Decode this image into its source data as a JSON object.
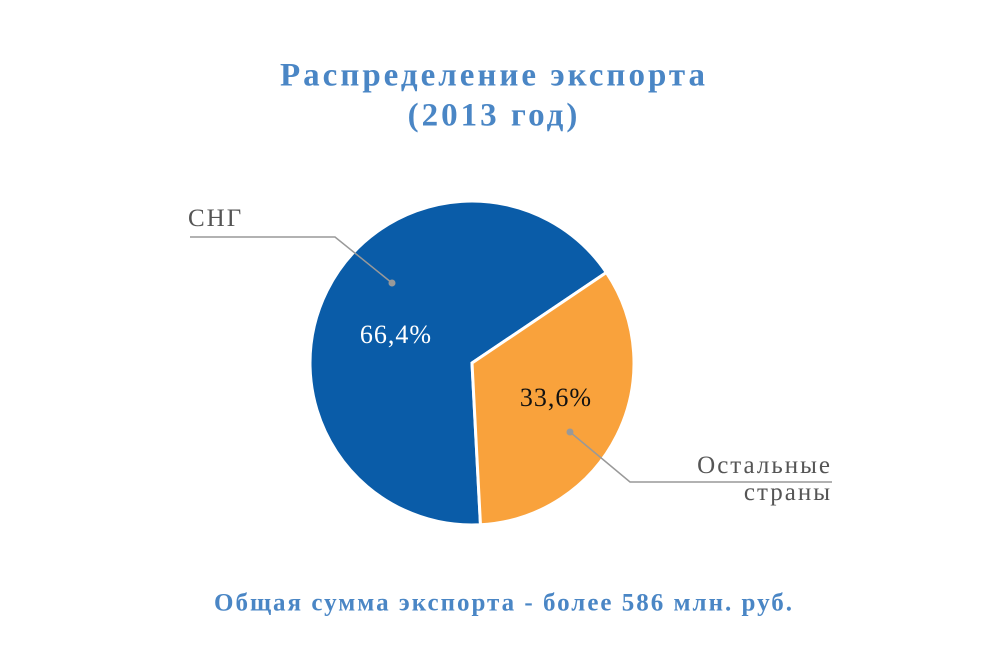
{
  "chart_data": {
    "type": "pie",
    "title": [
      "Распределение экспорта",
      "(2013 год)"
    ],
    "categories": [
      "СНГ",
      "Остальные страны"
    ],
    "values": [
      66.4,
      33.6
    ],
    "value_labels": [
      "66,4%",
      "33,6%"
    ],
    "colors": [
      "#0a5ca8",
      "#f9a23c"
    ],
    "annotation": "Общая сумма экспорта - более 586 млн. руб."
  }
}
